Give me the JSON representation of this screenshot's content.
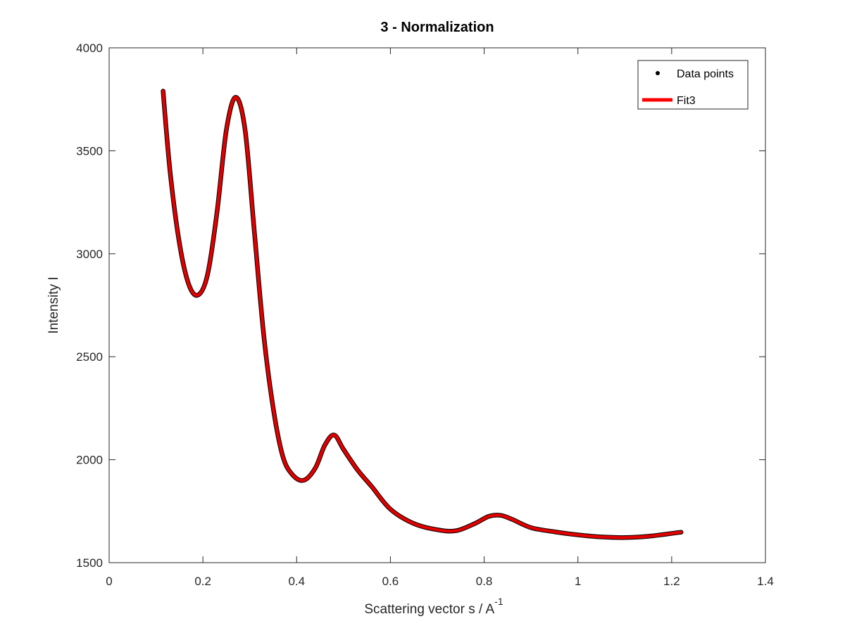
{
  "chart_data": {
    "type": "line",
    "title": "3 - Normalization",
    "xlabel": "Scattering vector s / A",
    "xlabel_superscript": "-1",
    "ylabel": "Intensity I",
    "xlim": [
      0,
      1.4
    ],
    "ylim": [
      1500,
      4000
    ],
    "xticks": [
      0,
      0.2,
      0.4,
      0.6,
      0.8,
      1,
      1.2,
      1.4
    ],
    "xtick_labels": [
      "0",
      "0.2",
      "0.4",
      "0.6",
      "0.8",
      "1",
      "1.2",
      "1.4"
    ],
    "yticks": [
      1500,
      2000,
      2500,
      3000,
      3500,
      4000
    ],
    "ytick_labels": [
      "1500",
      "2000",
      "2500",
      "3000",
      "3500",
      "4000"
    ],
    "grid": false,
    "legend": {
      "placement": "top-right",
      "entries": [
        "Data points",
        "Fit3"
      ]
    },
    "series": [
      {
        "name": "Data points",
        "style": "markers",
        "color": "#000000",
        "x": [
          0.115,
          0.13,
          0.15,
          0.17,
          0.19,
          0.21,
          0.23,
          0.25,
          0.27,
          0.29,
          0.31,
          0.33,
          0.35,
          0.37,
          0.39,
          0.415,
          0.44,
          0.46,
          0.48,
          0.5,
          0.53,
          0.56,
          0.6,
          0.65,
          0.7,
          0.74,
          0.78,
          0.81,
          0.835,
          0.86,
          0.9,
          0.95,
          1.0,
          1.05,
          1.1,
          1.15,
          1.22
        ],
        "y": [
          3790,
          3400,
          3050,
          2850,
          2800,
          2900,
          3200,
          3600,
          3760,
          3600,
          3100,
          2600,
          2250,
          2020,
          1930,
          1900,
          1960,
          2070,
          2120,
          2050,
          1950,
          1870,
          1760,
          1690,
          1660,
          1655,
          1690,
          1725,
          1730,
          1710,
          1670,
          1650,
          1635,
          1625,
          1622,
          1628,
          1648
        ]
      },
      {
        "name": "Fit3",
        "style": "line",
        "color": "#ff0000",
        "x": [
          0.115,
          0.13,
          0.15,
          0.17,
          0.19,
          0.21,
          0.23,
          0.25,
          0.27,
          0.29,
          0.31,
          0.33,
          0.35,
          0.37,
          0.39,
          0.415,
          0.44,
          0.46,
          0.48,
          0.5,
          0.53,
          0.56,
          0.6,
          0.65,
          0.7,
          0.74,
          0.78,
          0.81,
          0.835,
          0.86,
          0.9,
          0.95,
          1.0,
          1.05,
          1.1,
          1.15,
          1.22
        ],
        "y": [
          3790,
          3400,
          3050,
          2850,
          2800,
          2900,
          3200,
          3600,
          3760,
          3600,
          3100,
          2600,
          2250,
          2020,
          1930,
          1900,
          1960,
          2070,
          2120,
          2050,
          1950,
          1870,
          1760,
          1690,
          1660,
          1655,
          1690,
          1725,
          1730,
          1710,
          1670,
          1650,
          1635,
          1625,
          1622,
          1628,
          1648
        ]
      }
    ]
  }
}
